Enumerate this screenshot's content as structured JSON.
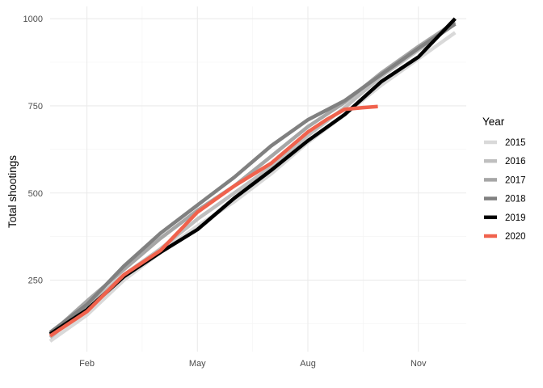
{
  "chart_data": {
    "type": "line",
    "ylabel": "Total shootings",
    "xlabel": "",
    "xlim": [
      1,
      12.3
    ],
    "ylim": [
      45,
      1035
    ],
    "x_ticks": [
      {
        "value": 2,
        "label": "Feb"
      },
      {
        "value": 5,
        "label": "May"
      },
      {
        "value": 8,
        "label": "Aug"
      },
      {
        "value": 11,
        "label": "Nov"
      }
    ],
    "y_ticks": [
      {
        "value": 250,
        "label": "250"
      },
      {
        "value": 500,
        "label": "500"
      },
      {
        "value": 750,
        "label": "750"
      },
      {
        "value": 1000,
        "label": "1000"
      }
    ],
    "grid": true,
    "legend": {
      "title": "Year",
      "placement": "right"
    },
    "series": [
      {
        "name": "2015",
        "color": "#d9d9d9",
        "x": [
          1,
          2,
          3,
          4,
          5,
          6,
          7,
          8,
          9,
          10,
          11,
          12
        ],
        "y": [
          75,
          150,
          250,
          330,
          405,
          475,
          555,
          645,
          725,
          810,
          885,
          960
        ]
      },
      {
        "name": "2016",
        "color": "#bfbfbf",
        "x": [
          1,
          2,
          3,
          4,
          5,
          6,
          7,
          8,
          9,
          10,
          11,
          12
        ],
        "y": [
          85,
          175,
          265,
          340,
          425,
          500,
          575,
          665,
          745,
          835,
          910,
          985
        ]
      },
      {
        "name": "2017",
        "color": "#a6a6a6",
        "x": [
          1,
          2,
          3,
          4,
          5,
          6,
          7,
          8,
          9,
          10,
          11,
          12
        ],
        "y": [
          95,
          190,
          280,
          370,
          450,
          520,
          605,
          690,
          760,
          845,
          920,
          990
        ]
      },
      {
        "name": "2018",
        "color": "#808080",
        "x": [
          1,
          2,
          3,
          4,
          5,
          6,
          7,
          8,
          9,
          10,
          11,
          12
        ],
        "y": [
          100,
          180,
          290,
          385,
          465,
          545,
          635,
          710,
          765,
          840,
          915,
          985
        ]
      },
      {
        "name": "2019",
        "color": "#000000",
        "x": [
          1,
          2,
          3,
          4,
          5,
          6,
          7,
          8,
          9,
          10,
          11,
          12
        ],
        "y": [
          95,
          165,
          260,
          330,
          395,
          485,
          565,
          650,
          725,
          820,
          890,
          1000
        ]
      },
      {
        "name": "2020",
        "color": "#f0624d",
        "x": [
          1,
          2,
          3,
          4,
          5,
          6,
          7,
          8,
          8.5,
          9,
          9.5,
          9.9
        ],
        "y": [
          90,
          160,
          265,
          335,
          445,
          520,
          585,
          675,
          710,
          740,
          745,
          748
        ]
      }
    ]
  }
}
